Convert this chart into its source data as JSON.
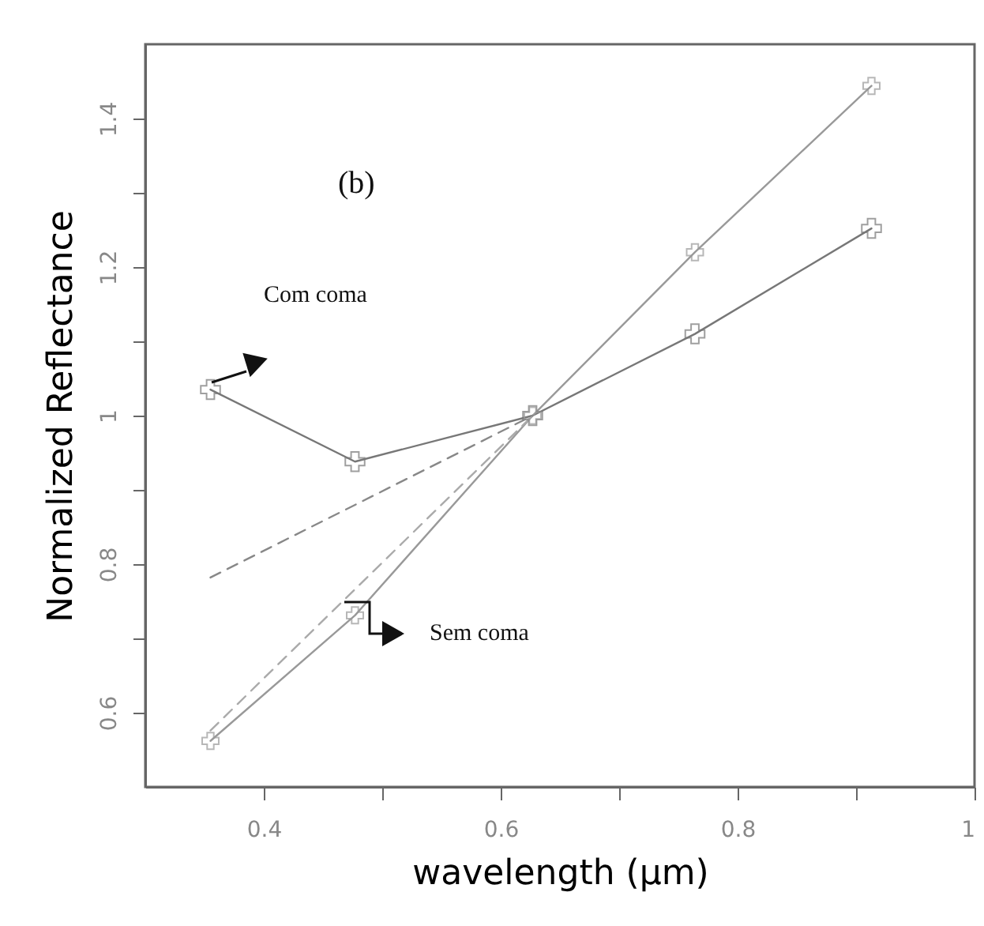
{
  "chart_data": {
    "type": "line",
    "xlabel": "wavelength (μm)",
    "ylabel": "Normalized Reflectance",
    "xlim": [
      0.3,
      1.0
    ],
    "ylim": [
      0.5,
      1.5
    ],
    "xticks": [
      0.4,
      {
        "value": 0.5,
        "label": null
      },
      0.6,
      {
        "value": 0.7,
        "label": null
      },
      0.8,
      {
        "value": 0.9,
        "label": null
      },
      {
        "value": 1,
        "label": "1"
      }
    ],
    "yticks": [
      0.6,
      {
        "value": 0.7,
        "label": null
      },
      0.8,
      {
        "value": 0.9,
        "label": null
      },
      {
        "value": 1,
        "label": "1"
      },
      {
        "value": 1.1,
        "label": null
      },
      1.2,
      {
        "value": 1.3,
        "label": null
      },
      1.4
    ],
    "grid": false,
    "series": [
      {
        "color": "#777777",
        "line_style": "solid",
        "marker": "cross",
        "x": [
          0.355,
          0.477,
          0.627,
          0.764,
          0.913
        ],
        "values": [
          1.035,
          0.938,
          1.0,
          1.11,
          1.252
        ]
      },
      {
        "color": "#999999",
        "line_style": "solid",
        "marker": "cross",
        "x": [
          0.355,
          0.477,
          0.627,
          0.764,
          0.913
        ],
        "values": [
          0.562,
          0.731,
          1.0,
          1.22,
          1.444
        ]
      },
      {
        "color": "#888888",
        "line_style": "dashed",
        "x": [
          0.355,
          0.627
        ],
        "values": [
          0.782,
          1.0
        ]
      },
      {
        "color": "#aaaaaa",
        "line_style": "dashed",
        "x": [
          0.355,
          0.627
        ],
        "values": [
          0.576,
          1.0
        ]
      }
    ],
    "annotations": [
      "(b)",
      "Com coma",
      "Sem coma"
    ]
  }
}
